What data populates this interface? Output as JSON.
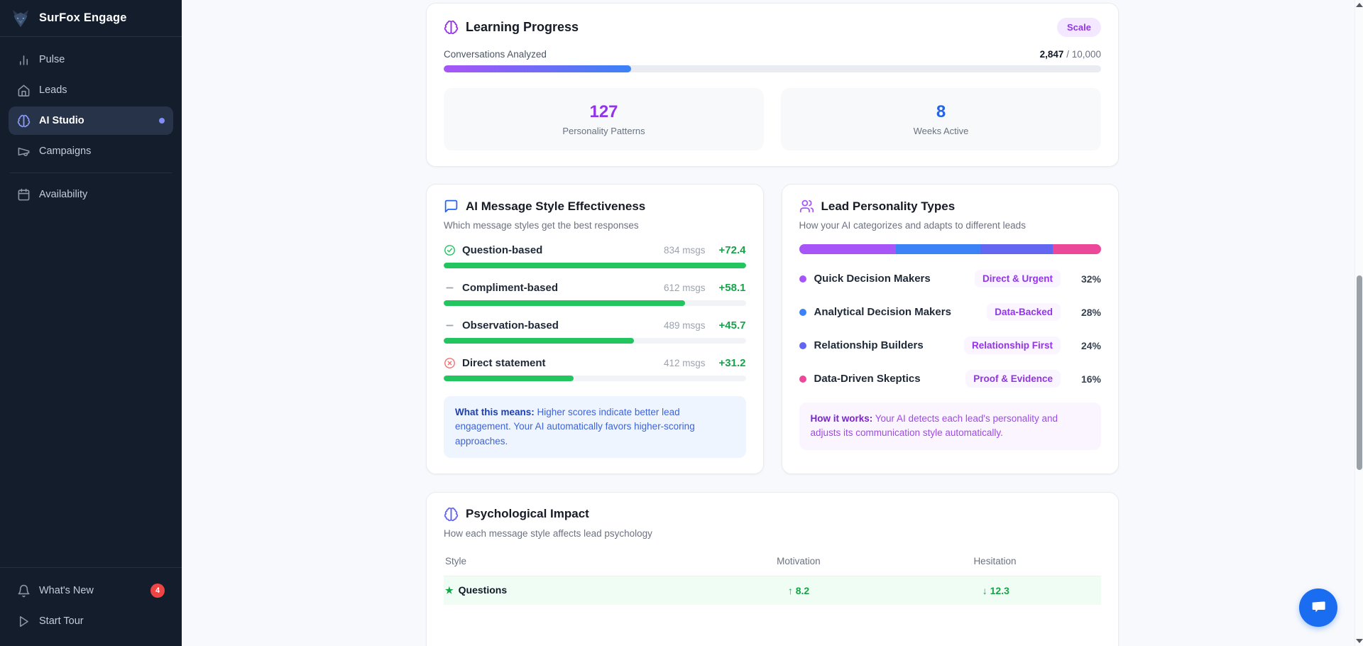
{
  "sidebar": {
    "brand": "SurFox Engage",
    "nav": [
      {
        "label": "Pulse"
      },
      {
        "label": "Leads"
      },
      {
        "label": "AI Studio",
        "active": true
      },
      {
        "label": "Campaigns"
      },
      {
        "label": "Availability"
      }
    ],
    "bottom": [
      {
        "label": "What's New",
        "badge": "4"
      },
      {
        "label": "Start Tour"
      }
    ]
  },
  "learning_progress": {
    "title": "Learning Progress",
    "badge": "Scale",
    "metric_label": "Conversations Analyzed",
    "metric_value": "2,847",
    "metric_total": " / 10,000",
    "progress_pct": 28.5,
    "stats": [
      {
        "value": "127",
        "label": "Personality Patterns",
        "color": "#9333ea"
      },
      {
        "value": "8",
        "label": "Weeks Active",
        "color": "#2563eb"
      }
    ]
  },
  "message_effectiveness": {
    "title": "AI Message Style Effectiveness",
    "subtitle": "Which message styles get the best responses",
    "rows": [
      {
        "label": "Question-based",
        "msgs": "834 msgs",
        "score": "+72.4",
        "bar_pct": 100,
        "icon": "check-circle"
      },
      {
        "label": "Compliment-based",
        "msgs": "612 msgs",
        "score": "+58.1",
        "bar_pct": 80,
        "icon": "dash"
      },
      {
        "label": "Observation-based",
        "msgs": "489 msgs",
        "score": "+45.7",
        "bar_pct": 63,
        "icon": "dash"
      },
      {
        "label": "Direct statement",
        "msgs": "412 msgs",
        "score": "+31.2",
        "bar_pct": 43,
        "icon": "x-circle"
      }
    ],
    "note_label": "What this means:",
    "note_text": " Higher scores indicate better lead engagement. Your AI automatically favors higher-scoring approaches."
  },
  "personality_types": {
    "title": "Lead Personality Types",
    "subtitle": "How your AI categorizes and adapts to different leads",
    "segments": [
      {
        "label": "Quick Decision Makers",
        "tag": "Direct & Urgent",
        "pct": "32%",
        "value": 32,
        "color": "#a855f7"
      },
      {
        "label": "Analytical Decision Makers",
        "tag": "Data-Backed",
        "pct": "28%",
        "value": 28,
        "color": "#3b82f6"
      },
      {
        "label": "Relationship Builders",
        "tag": "Relationship First",
        "pct": "24%",
        "value": 24,
        "color": "#6366f1"
      },
      {
        "label": "Data-Driven Skeptics",
        "tag": "Proof & Evidence",
        "pct": "16%",
        "value": 16,
        "color": "#ec4899"
      }
    ],
    "note_label": "How it works:",
    "note_text": " Your AI detects each lead's personality and adjusts its communication style automatically."
  },
  "psych_impact": {
    "title": "Psychological Impact",
    "subtitle": "How each message style affects lead psychology",
    "columns": [
      "Style",
      "Motivation",
      "Hesitation"
    ],
    "rows": [
      {
        "star": "★",
        "style": "Questions",
        "motivation": "↑ 8.2",
        "hesitation": "↓ 12.3"
      }
    ]
  },
  "colors": {
    "bar_gradient_start": "#a855f7",
    "bar_gradient_end": "#3b82f6",
    "effect_bar": "#22c55e",
    "accent_purple": "#9333ea",
    "accent_blue": "#2563eb",
    "badge_red": "#ef4444",
    "chat_blue": "#1a6df0"
  }
}
